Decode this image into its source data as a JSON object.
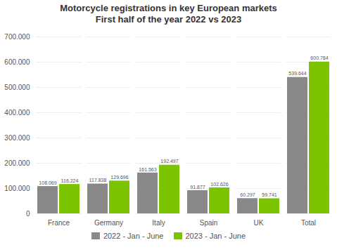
{
  "chart_data": {
    "type": "bar",
    "title": "Motorcycle registrations in key European markets",
    "subtitle": "First half of the year  2022 vs 2023",
    "categories": [
      "France",
      "Germany",
      "Italy",
      "Spain",
      "UK",
      "Total"
    ],
    "series": [
      {
        "name": "2022 - Jan - June",
        "color": "#888888",
        "values": [
          108069,
          117838,
          161563,
          91877,
          60297,
          539644
        ],
        "value_labels": [
          "108.069",
          "117.838",
          "161.563",
          "91.877",
          "60.297",
          "539.644"
        ]
      },
      {
        "name": "2023 - Jan - June",
        "color": "#7dc400",
        "values": [
          116224,
          129696,
          192497,
          102626,
          59741,
          600784
        ],
        "value_labels": [
          "116.224",
          "129.696",
          "192.497",
          "102.626",
          "59.741",
          "600.784"
        ]
      }
    ],
    "ylim": [
      0,
      700000
    ],
    "yticks": [
      0,
      {
        "value": 100000,
        "label": "100.000"
      },
      {
        "value": 200000,
        "label": "200.000"
      },
      {
        "value": 300000,
        "label": "300.000"
      },
      {
        "value": 400000,
        "label": "400.000"
      },
      {
        "value": 500000,
        "label": "500.000"
      },
      {
        "value": 600000,
        "label": "600.000"
      },
      {
        "value": 700000,
        "label": "700.000"
      }
    ],
    "grid": true,
    "legend": "bottom",
    "data_labels": true
  }
}
